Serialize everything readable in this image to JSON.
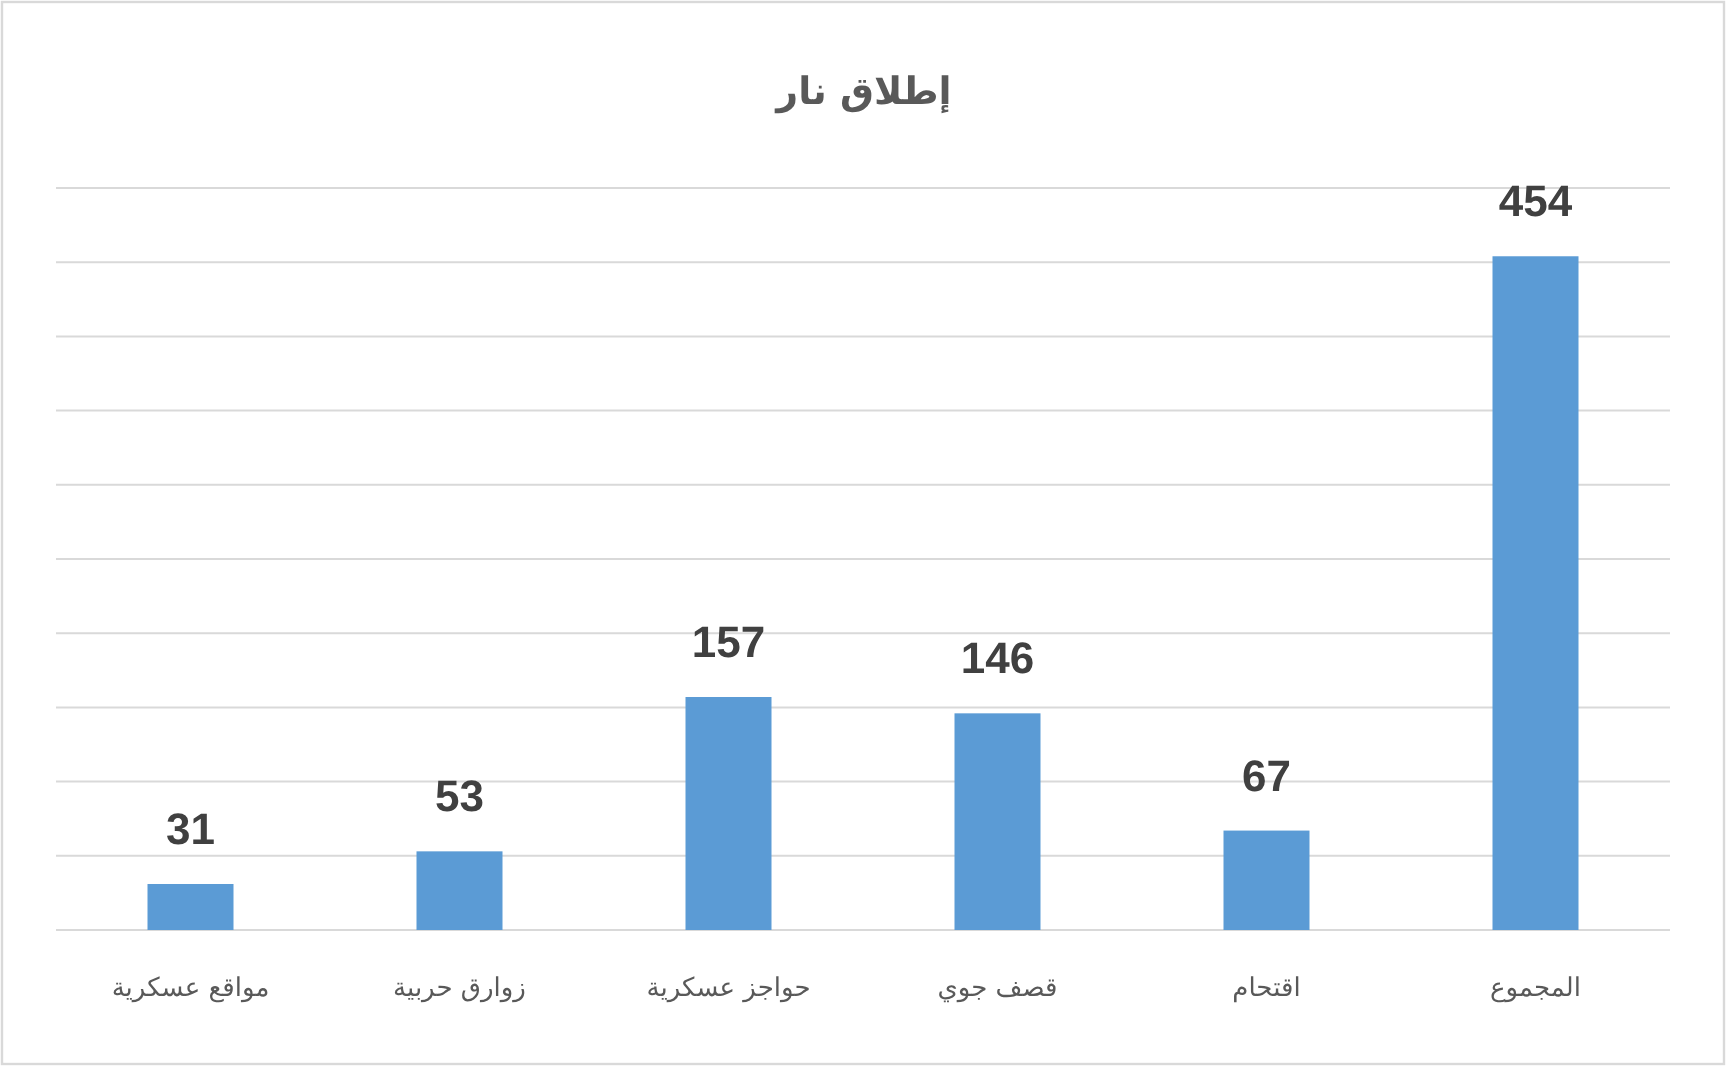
{
  "chart_data": {
    "type": "bar",
    "title": "إطلاق نار",
    "categories": [
      "مواقع عسكرية",
      "زوارق حربية",
      "حواجز عسكرية",
      "قصف جوي",
      "اقتحام",
      "المجموع"
    ],
    "values": [
      31,
      53,
      157,
      146,
      67,
      454
    ],
    "color": "#5b9bd5",
    "data_labels": true,
    "ylim": [
      0,
      500
    ],
    "yticks": [
      {
        "value": 0,
        "label": null
      },
      {
        "value": 50,
        "label": null
      },
      {
        "value": 100,
        "label": null
      },
      {
        "value": 150,
        "label": null
      },
      {
        "value": 200,
        "label": null
      },
      {
        "value": 250,
        "label": null
      },
      {
        "value": 300,
        "label": null
      },
      {
        "value": 350,
        "label": null
      },
      {
        "value": 400,
        "label": null
      },
      {
        "value": 450,
        "label": null
      },
      {
        "value": 500,
        "label": null
      }
    ],
    "tick_labels": "x",
    "grid": "y"
  }
}
